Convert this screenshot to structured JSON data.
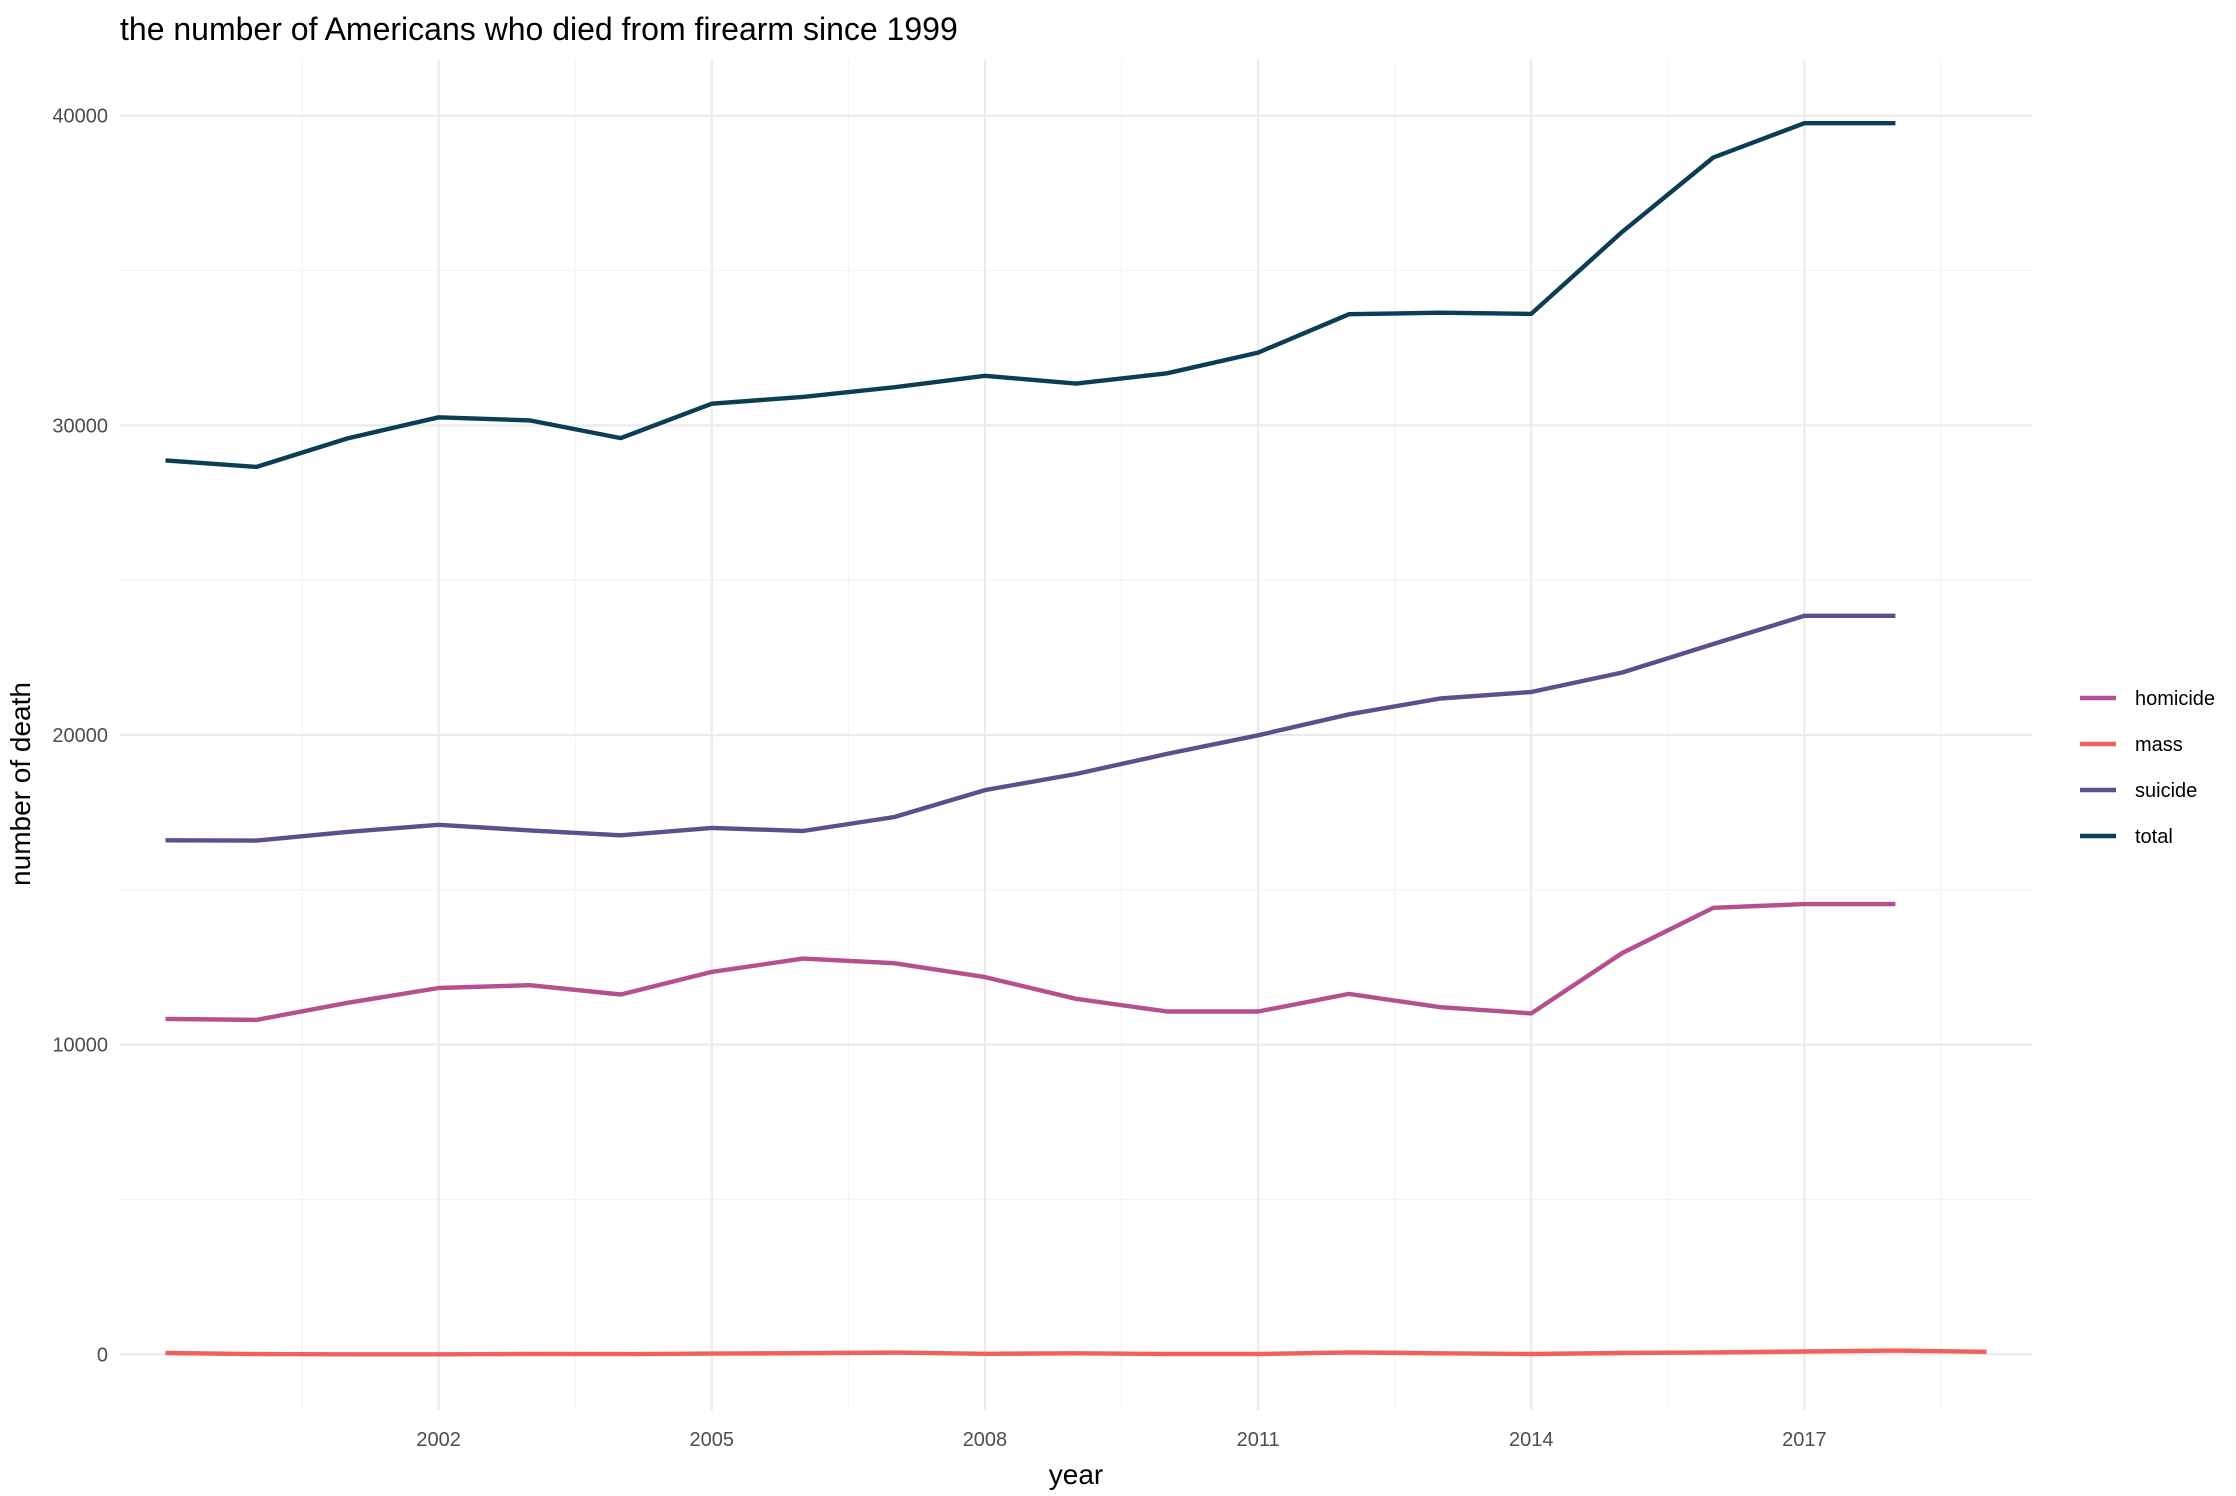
{
  "chart_data": {
    "type": "line",
    "title": "the number of Americans who died from firearm since 1999",
    "xlabel": "year",
    "ylabel": "number of death",
    "xlim": [
      1998.5,
      2019.5
    ],
    "ylim": [
      -1800,
      41800
    ],
    "x_ticks": [
      2002,
      2005,
      2008,
      2011,
      2014,
      2017
    ],
    "x_tick_labels": [
      "2002",
      "2005",
      "2008",
      "2011",
      "2014",
      "2017"
    ],
    "y_ticks": [
      0,
      10000,
      20000,
      30000,
      40000
    ],
    "y_tick_labels": [
      "0",
      "10000",
      "20000",
      "30000",
      "40000"
    ],
    "grid": true,
    "legend_position": "right",
    "series": [
      {
        "name": "homicide",
        "color": "#b5508f",
        "x": [
          1999,
          2000,
          2001,
          2002,
          2003,
          2004,
          2005,
          2006,
          2007,
          2008,
          2009,
          2010,
          2011,
          2012,
          2013,
          2014,
          2015,
          2016,
          2017,
          2018
        ],
        "values": [
          10830,
          10800,
          11350,
          11830,
          11920,
          11620,
          12350,
          12780,
          12630,
          12180,
          11480,
          11070,
          11070,
          11640,
          11210,
          11010,
          12960,
          14420,
          14540,
          14540
        ]
      },
      {
        "name": "mass",
        "color": "#f06060",
        "x": [
          1999,
          2000,
          2001,
          2002,
          2003,
          2004,
          2005,
          2006,
          2007,
          2008,
          2009,
          2010,
          2011,
          2012,
          2013,
          2014,
          2015,
          2016,
          2017,
          2018,
          2019
        ],
        "values": [
          40,
          5,
          0,
          0,
          10,
          5,
          20,
          35,
          55,
          15,
          30,
          10,
          10,
          60,
          30,
          10,
          40,
          60,
          90,
          120,
          80
        ]
      },
      {
        "name": "suicide",
        "color": "#5c4f8c",
        "x": [
          1999,
          2000,
          2001,
          2002,
          2003,
          2004,
          2005,
          2006,
          2007,
          2008,
          2009,
          2010,
          2011,
          2012,
          2013,
          2014,
          2015,
          2016,
          2017,
          2018
        ],
        "values": [
          16600,
          16590,
          16870,
          17100,
          16920,
          16760,
          17000,
          16900,
          17350,
          18220,
          18740,
          19390,
          19990,
          20670,
          21180,
          21390,
          22020,
          22940,
          23850,
          23850
        ]
      },
      {
        "name": "total",
        "color": "#0b3d55",
        "x": [
          1999,
          2000,
          2001,
          2002,
          2003,
          2004,
          2005,
          2006,
          2007,
          2008,
          2009,
          2010,
          2011,
          2012,
          2013,
          2014,
          2015,
          2016,
          2017,
          2018
        ],
        "values": [
          28870,
          28660,
          29580,
          30260,
          30160,
          29590,
          30700,
          30920,
          31230,
          31600,
          31350,
          31680,
          32350,
          33590,
          33640,
          33600,
          36250,
          38650,
          39760,
          39760
        ]
      }
    ]
  }
}
